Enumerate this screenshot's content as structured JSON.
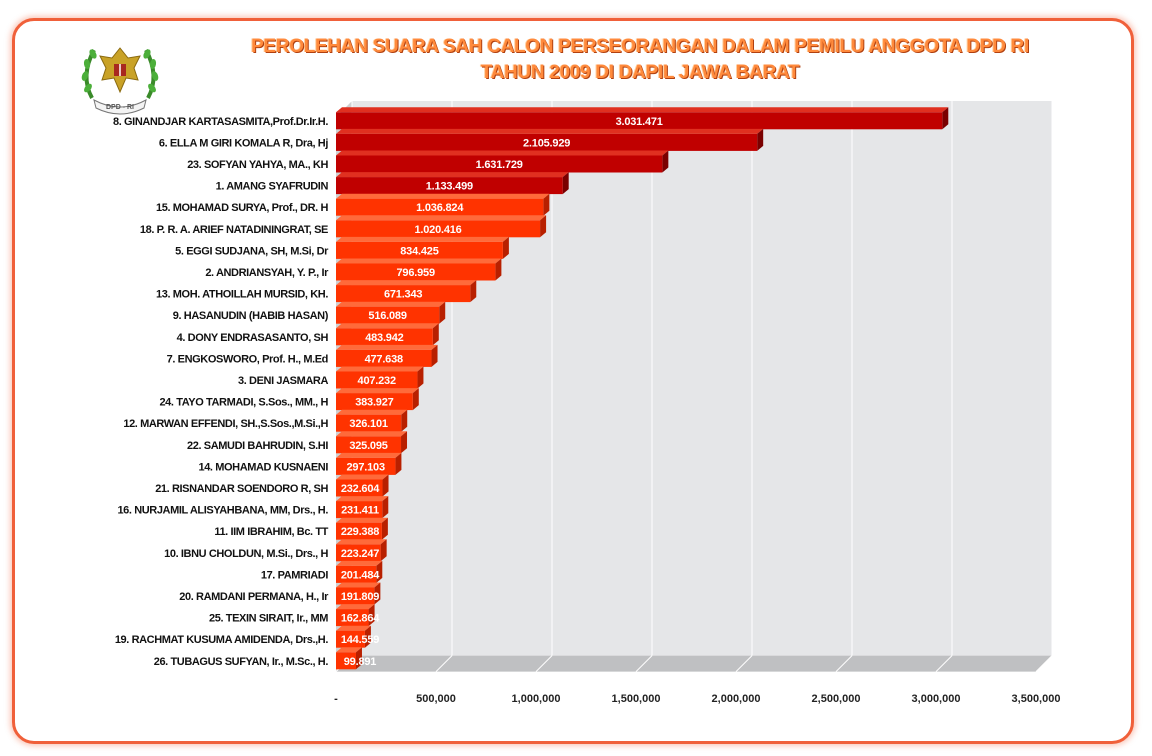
{
  "title_line1": "PEROLEHAN SUARA SAH CALON PERSEORANGAN DALAM PEMILU ANGGOTA DPD RI",
  "title_line2": "TAHUN 2009  DI DAPIL JAWA BARAT",
  "emblem_text": "DPD - RI",
  "colors": {
    "frame": "#f0603a",
    "bar_top": "#c00000",
    "bar_rest": "#ff3300",
    "plot_bg": "#e5e6e8",
    "title": "#ff8a3c"
  },
  "chart_data": {
    "type": "bar",
    "orientation": "horizontal",
    "style": "3d",
    "title": "PEROLEHAN SUARA SAH CALON PERSEORANGAN DALAM PEMILU ANGGOTA DPD RI TAHUN 2009  DI DAPIL JAWA BARAT",
    "xlim": [
      0,
      3500000
    ],
    "grid": true,
    "x_tick_labels": [
      "-",
      "500,000",
      "1,000,000",
      "1,500,000",
      "2,000,000",
      "2,500,000",
      "3,000,000",
      "3,500,000"
    ],
    "categories": [
      "8. GINANDJAR KARTASASMITA,Prof.Dr.Ir.H.",
      "6. ELLA M GIRI KOMALA R, Dra, Hj",
      "23. SOFYAN YAHYA, MA., KH",
      "1. AMANG SYAFRUDIN",
      "15. MOHAMAD SURYA, Prof., DR. H",
      "18. P. R. A. ARIEF NATADININGRAT, SE",
      "5. EGGI SUDJANA, SH, M.Si, Dr",
      "2. ANDRIANSYAH, Y. P., Ir",
      "13. MOH. ATHOILLAH MURSID, KH.",
      "9. HASANUDIN (HABIB HASAN)",
      "4. DONY ENDRASASANTO, SH",
      "7. ENGKOSWORO, Prof. H., M.Ed",
      "3. DENI JASMARA",
      "24. TAYO TARMADI, S.Sos., MM., H",
      "12. MARWAN EFFENDI, SH.,S.Sos.,M.Si.,H",
      "22. SAMUDI BAHRUDIN, S.HI",
      "14. MOHAMAD KUSNAENI",
      "21. RISNANDAR SOENDORO R, SH",
      "16. NURJAMIL ALISYAHBANA, MM, Drs., H.",
      "11. IIM IBRAHIM, Bc. TT",
      "10. IBNU CHOLDUN, M.Si., Drs., H",
      "17. PAMRIADI",
      "20. RAMDANI PERMANA, H., Ir",
      "25. TEXIN SIRAIT, Ir., MM",
      "19. RACHMAT KUSUMA AMIDENDA, Drs.,H.",
      "26. TUBAGUS SUFYAN, Ir., M.Sc., H."
    ],
    "values": [
      3031471,
      2105929,
      1631729,
      1133499,
      1036824,
      1020416,
      834425,
      796959,
      671343,
      516089,
      483942,
      477638,
      407232,
      383927,
      326101,
      325095,
      297103,
      232604,
      231411,
      229388,
      223247,
      201484,
      191809,
      162864,
      144559,
      99891
    ],
    "value_labels": [
      "3.031.471",
      "2.105.929",
      "1.631.729",
      "1.133.499",
      "1.036.824",
      "1.020.416",
      "834.425",
      "796.959",
      "671.343",
      "516.089",
      "483.942",
      "477.638",
      "407.232",
      "383.927",
      "326.101",
      "325.095",
      "297.103",
      "232.604",
      "231.411",
      "229.388",
      "223.247",
      "201.484",
      "191.809",
      "162.864",
      "144.559",
      "99.891"
    ]
  }
}
